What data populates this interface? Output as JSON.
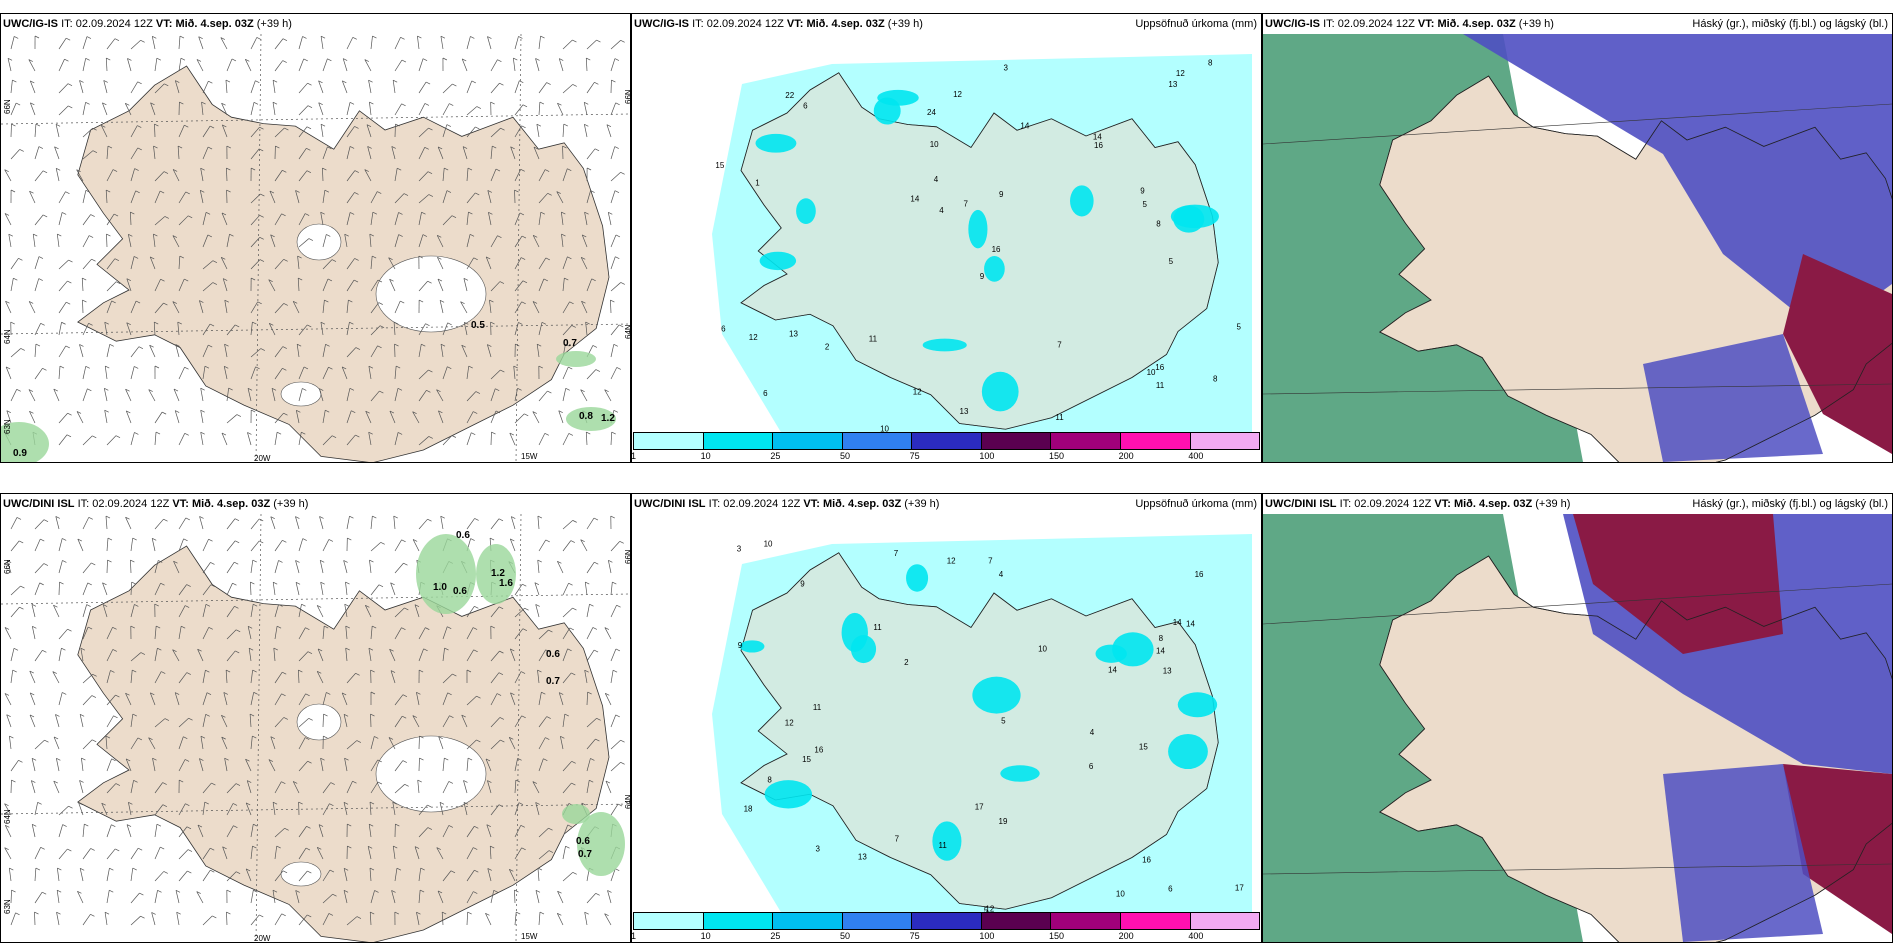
{
  "panels": {
    "top_left": {
      "model": "UWC/IG-IS",
      "it_prefix": "IT: ",
      "it": "02.09.2024 12Z",
      "vt_prefix": "VT: ",
      "vt": "Mið. 4.sep. 03Z",
      "lead": "(+39 h)"
    },
    "top_middle": {
      "model": "UWC/IG-IS",
      "it_prefix": "IT: ",
      "it": "02.09.2024 12Z",
      "vt_prefix": "VT: ",
      "vt": "Mið. 4.sep. 03Z",
      "lead": "(+39 h)",
      "field": "Uppsöfnuð úrkoma (mm)"
    },
    "top_right": {
      "model": "UWC/IG-IS",
      "it_prefix": "IT: ",
      "it": "02.09.2024 12Z",
      "vt_prefix": "VT: ",
      "vt": "Mið. 4.sep. 03Z",
      "lead": "(+39 h)",
      "field": "Háský (gr.), miðský (fj.bl.) og lágský (bl.)"
    },
    "bottom_left": {
      "model": "UWC/DINI ISL",
      "it_prefix": "IT: ",
      "it": "02.09.2024 12Z",
      "vt_prefix": "VT: ",
      "vt": "Mið. 4.sep. 03Z",
      "lead": "(+39 h)"
    },
    "bottom_middle": {
      "model": "UWC/DINI ISL",
      "it_prefix": "IT: ",
      "it": "02.09.2024 12Z",
      "vt_prefix": "VT: ",
      "vt": "Mið. 4.sep. 03Z",
      "lead": "(+39 h)",
      "field": "Uppsöfnuð úrkoma (mm)"
    },
    "bottom_right": {
      "model": "UWC/DINI ISL",
      "it_prefix": "IT: ",
      "it": "02.09.2024 12Z",
      "vt_prefix": "VT: ",
      "vt": "Mið. 4.sep. 03Z",
      "lead": "(+39 h)",
      "field": "Háský (gr.), miðský (fj.bl.) og lágský (bl.)"
    }
  },
  "axis_labels": {
    "lon1": "20W",
    "lon2": "15W",
    "lat66": "66N",
    "lat64": "64N",
    "lat65": "65N",
    "lat63": "63N"
  },
  "colorbar": {
    "labels": [
      "1",
      "10",
      "25",
      "50",
      "75",
      "100",
      "150",
      "200",
      "400"
    ],
    "colors": [
      "#b3ffff",
      "#00e5f0",
      "#00bff0",
      "#3080f0",
      "#2b2bc0",
      "#5a0050",
      "#a0007a",
      "#ff10b0",
      "#f2aaf2"
    ]
  },
  "top_left_values": [
    "0.5",
    "0.7",
    "0.8",
    "1.2",
    "0.9"
  ],
  "bottom_left_values": [
    "1.0",
    "0.6",
    "1.2",
    "1.6",
    "0.6",
    "0.6",
    "0.7",
    "0.6",
    "0.7"
  ],
  "precip_values_top": [
    "6",
    "1",
    "4",
    "5",
    "16",
    "12",
    "10",
    "14",
    "13",
    "14",
    "7",
    "5",
    "9",
    "12",
    "8",
    "12",
    "6",
    "10",
    "11",
    "22",
    "13",
    "16",
    "11",
    "14",
    "15",
    "16",
    "24",
    "8",
    "9",
    "13",
    "3",
    "2",
    "4",
    "7",
    "12",
    "10",
    "8",
    "5",
    "6",
    "11",
    "9"
  ],
  "precip_values_bottom": [
    "6",
    "4",
    "7",
    "10",
    "11",
    "14",
    "12",
    "16",
    "13",
    "15",
    "17",
    "14",
    "16",
    "12",
    "18",
    "19",
    "11",
    "8",
    "5",
    "3",
    "2",
    "4",
    "7",
    "9",
    "6",
    "10",
    "13",
    "14",
    "16",
    "14",
    "15",
    "12",
    "11",
    "10",
    "8",
    "5",
    "3",
    "7",
    "9",
    "17"
  ],
  "colors": {
    "land": "#ecdccb",
    "precip_light": "#b3ffff",
    "precip_mid": "#00e5f0",
    "high_cloud": "#5fa886",
    "mid_cloud": "#4f4fc2",
    "low_cloud": "#8a1a45",
    "wind_green": "#9ad79a"
  }
}
